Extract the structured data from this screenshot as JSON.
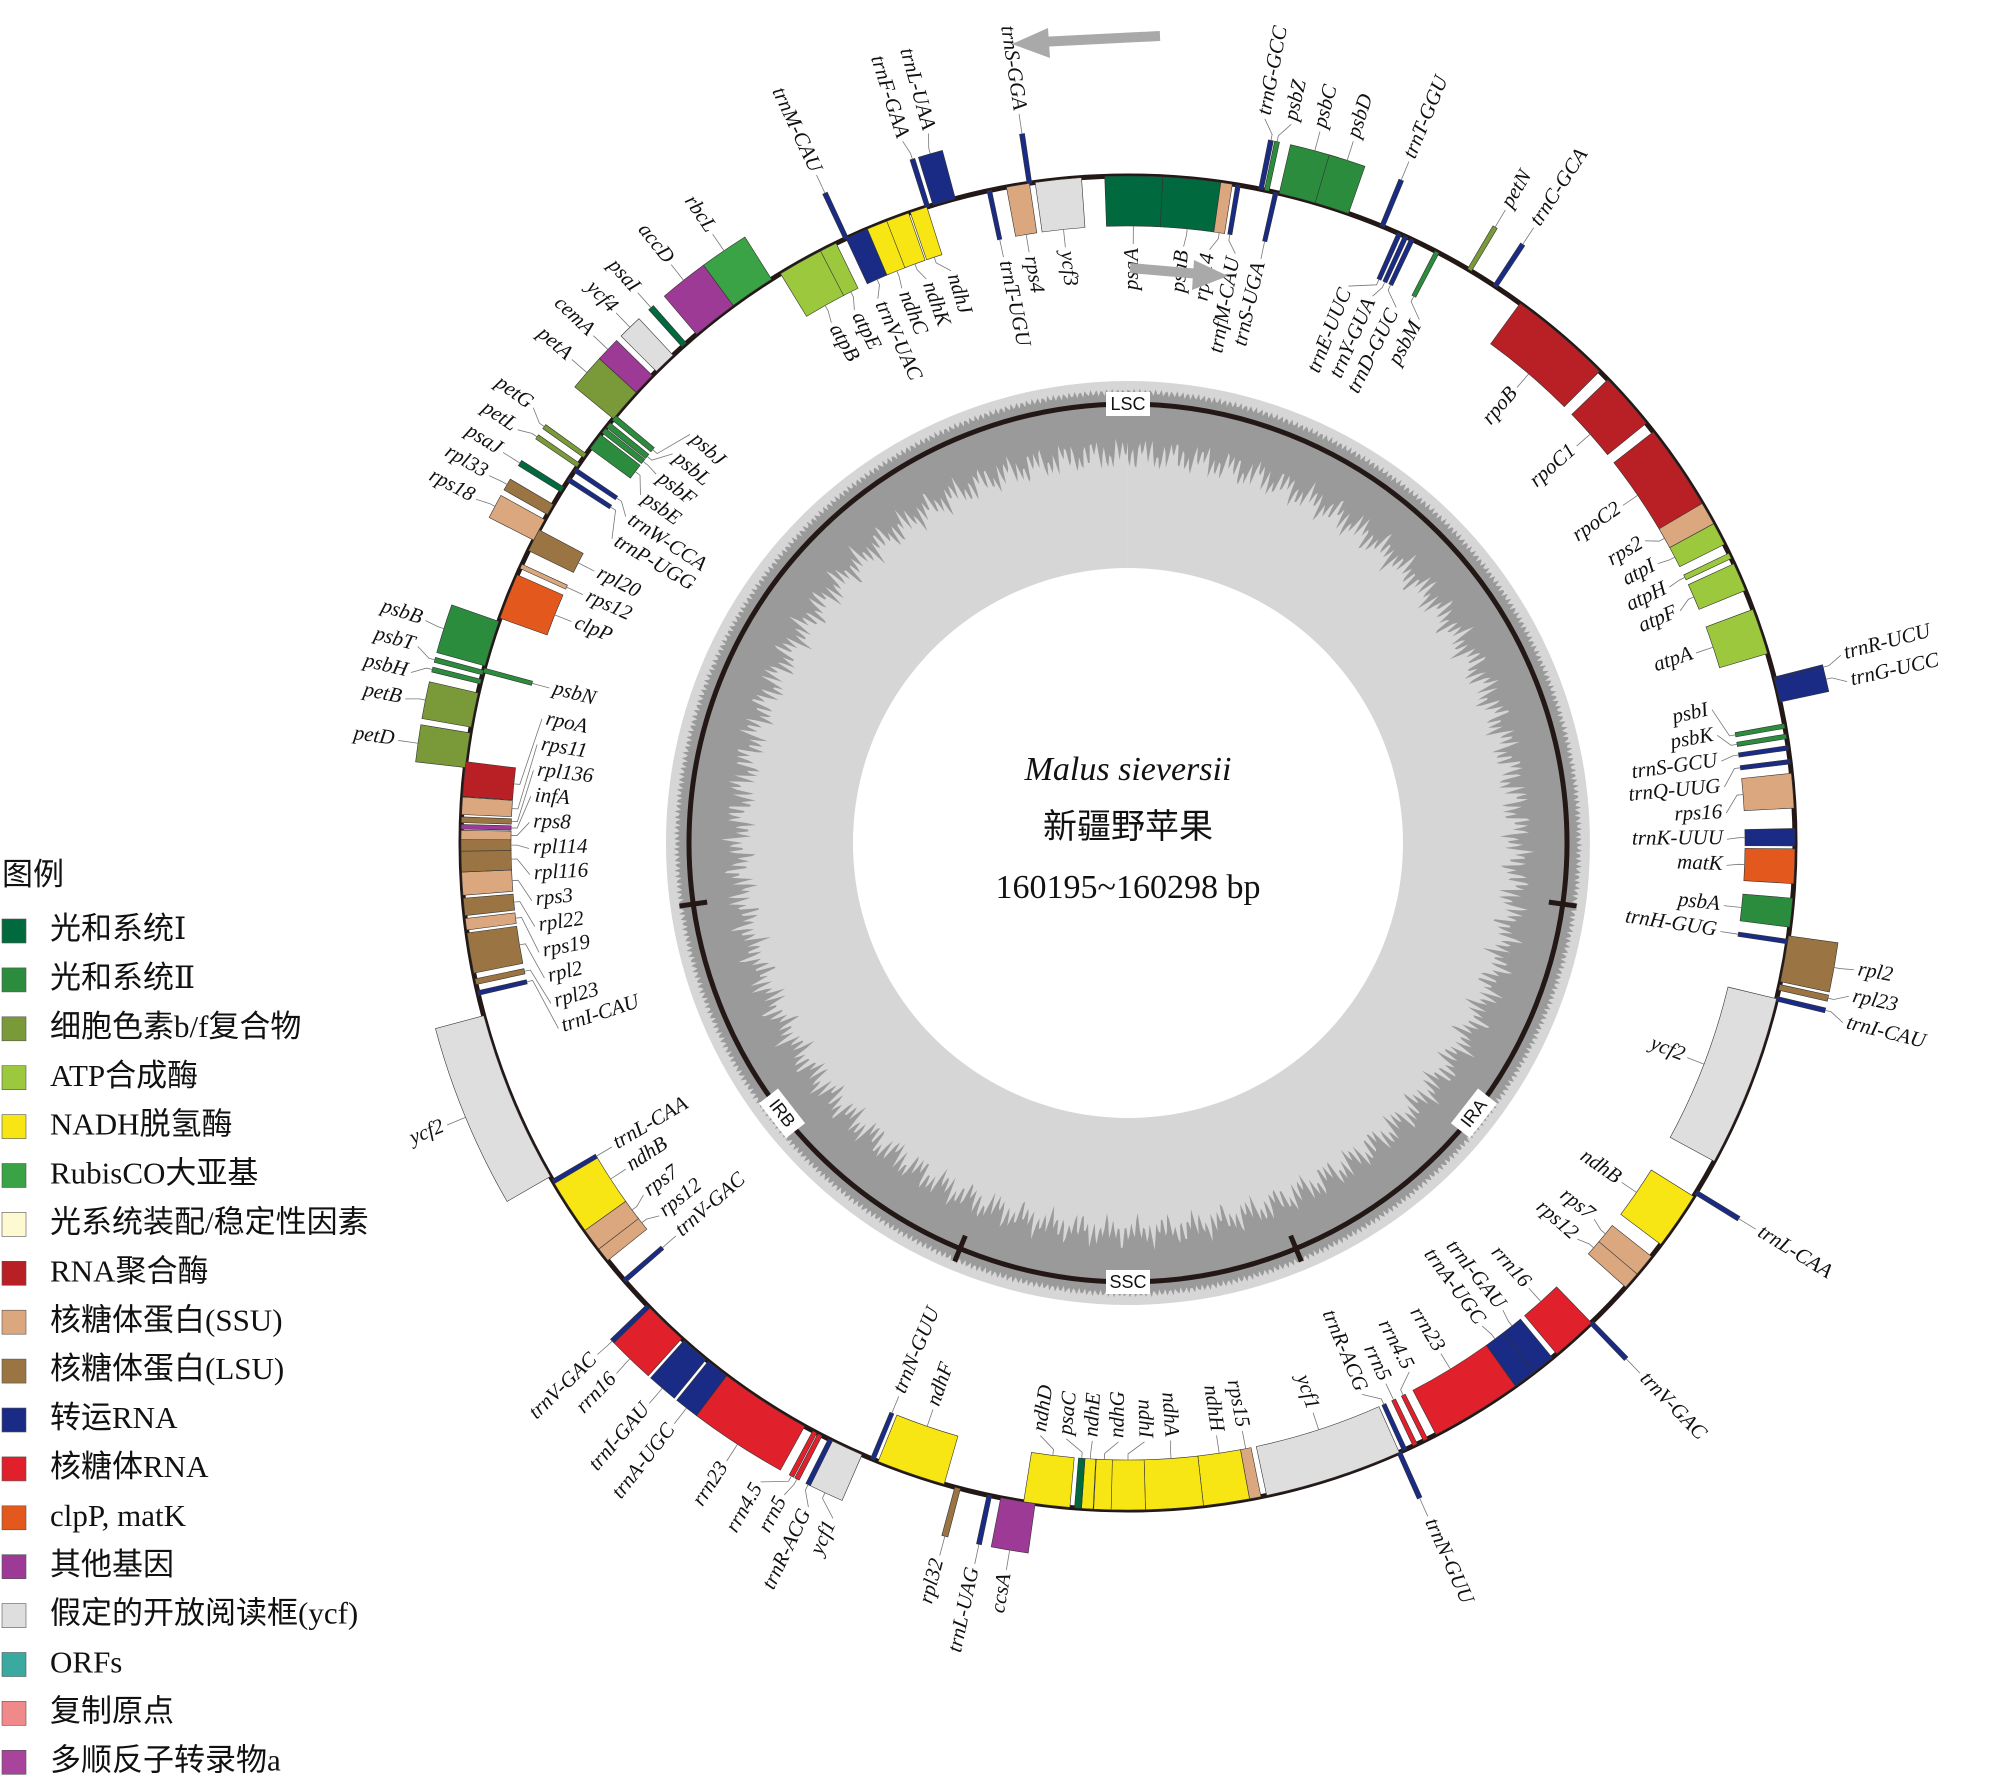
{
  "title": "Malus sieversii",
  "subtitle": "新疆野苹果",
  "genome_size": "160195~160298 bp",
  "regions": [
    "LSC",
    "IRA",
    "SSC",
    "IRB"
  ],
  "legend": {
    "title": "图例",
    "items": [
      {
        "label": "光和系统Ⅰ",
        "color": "#00693e"
      },
      {
        "label": "光和系统Ⅱ",
        "color": "#2a8c3c"
      },
      {
        "label": "细胞色素b/f复合物",
        "color": "#7a9a3a"
      },
      {
        "label": "ATP合成酶",
        "color": "#9bc83c"
      },
      {
        "label": "NADH脱氢酶",
        "color": "#f7e614"
      },
      {
        "label": "RubisCO大亚基",
        "color": "#3aa346"
      },
      {
        "label": "光系统装配/稳定性因素",
        "color": "#fdfad2"
      },
      {
        "label": "RNA聚合酶",
        "color": "#b82025"
      },
      {
        "label": "核糖体蛋白(SSU)",
        "color": "#dba77f"
      },
      {
        "label": "核糖体蛋白(LSU)",
        "color": "#9a7543"
      },
      {
        "label": "转运RNA",
        "color": "#1a2b85"
      },
      {
        "label": "核糖体RNA",
        "color": "#e0202b"
      },
      {
        "label": "clpP, matK",
        "color": "#e3591d"
      },
      {
        "label": "其他基因",
        "color": "#9c3a95"
      },
      {
        "label": "假定的开放阅读框(ycf)",
        "color": "#dedede"
      },
      {
        "label": "ORFs",
        "color": "#3aaaa0"
      },
      {
        "label": "复制原点",
        "color": "#f08a8a"
      },
      {
        "label": "多顺反子转录物a",
        "color": "#a8449c"
      }
    ]
  },
  "outer_genes": [
    {
      "label": "trnL-UAA",
      "color": "#1a2b85"
    },
    {
      "label": "trnF-GAA",
      "color": "#1a2b85"
    },
    {
      "label": "trnM-CAU",
      "color": "#1a2b85"
    },
    {
      "label": "rbcL",
      "color": "#3aa346"
    },
    {
      "label": "accD",
      "color": "#9c3a95"
    },
    {
      "label": "psaI",
      "color": "#00693e"
    },
    {
      "label": "ycf4",
      "color": "#dedede"
    },
    {
      "label": "cemA",
      "color": "#9c3a95"
    },
    {
      "label": "petA",
      "color": "#7a9a3a"
    },
    {
      "label": "petL",
      "color": "#7a9a3a"
    },
    {
      "label": "petG",
      "color": "#7a9a3a"
    },
    {
      "label": "psaJ",
      "color": "#00693e"
    },
    {
      "label": "rpl33",
      "color": "#9a7543"
    },
    {
      "label": "rps18",
      "color": "#dba77f"
    },
    {
      "label": "psbB",
      "color": "#2a8c3c"
    },
    {
      "label": "psbT",
      "color": "#2a8c3c"
    },
    {
      "label": "psbH",
      "color": "#2a8c3c"
    },
    {
      "label": "petB",
      "color": "#7a9a3a"
    },
    {
      "label": "petD",
      "color": "#7a9a3a"
    },
    {
      "label": "ycf2",
      "color": "#dedede"
    },
    {
      "label": "trnV-GAC",
      "color": "#1a2b85"
    },
    {
      "label": "rrn16",
      "color": "#e0202b"
    },
    {
      "label": "trnI-GAU",
      "color": "#1a2b85"
    },
    {
      "label": "trnA-UGC",
      "color": "#1a2b85"
    },
    {
      "label": "rrn23",
      "color": "#e0202b"
    },
    {
      "label": "rrn4.5",
      "color": "#e0202b"
    },
    {
      "label": "rrn5",
      "color": "#e0202b"
    },
    {
      "label": "trnR-ACG",
      "color": "#1a2b85"
    },
    {
      "label": "ycf1",
      "color": "#dedede"
    },
    {
      "label": "rpl32",
      "color": "#9a7543"
    },
    {
      "label": "trnL-UAG",
      "color": "#1a2b85"
    },
    {
      "label": "ccsA",
      "color": "#9c3a95"
    },
    {
      "label": "trnN-GUU",
      "color": "#1a2b85"
    },
    {
      "label": "trnV-GAC",
      "color": "#1a2b85"
    },
    {
      "label": "trnL-CAA",
      "color": "#1a2b85"
    },
    {
      "label": "rpl2",
      "color": "#9a7543"
    },
    {
      "label": "rpl23",
      "color": "#9a7543"
    },
    {
      "label": "trnI-CAU",
      "color": "#1a2b85"
    },
    {
      "label": "trnR-UCU",
      "color": "#1a2b85"
    },
    {
      "label": "trnG-UCC",
      "color": "#1a2b85"
    },
    {
      "label": "trnC-GCA",
      "color": "#1a2b85"
    },
    {
      "label": "petN",
      "color": "#7a9a3a"
    },
    {
      "label": "trnT-GGU",
      "color": "#1a2b85"
    },
    {
      "label": "psbD",
      "color": "#2a8c3c"
    },
    {
      "label": "psbC",
      "color": "#2a8c3c"
    },
    {
      "label": "psbZ",
      "color": "#2a8c3c"
    },
    {
      "label": "trnG-GCC",
      "color": "#1a2b85"
    },
    {
      "label": "trnS-GGA",
      "color": "#1a2b85"
    }
  ],
  "inner_genes": [
    {
      "label": "psaA",
      "color": "#00693e"
    },
    {
      "label": "psaB",
      "color": "#00693e"
    },
    {
      "label": "rps14",
      "color": "#dba77f"
    },
    {
      "label": "trnfM-CAU",
      "color": "#1a2b85"
    },
    {
      "label": "trnS-UGA",
      "color": "#1a2b85"
    },
    {
      "label": "trnE-UUC",
      "color": "#1a2b85"
    },
    {
      "label": "trnY-GUA",
      "color": "#1a2b85"
    },
    {
      "label": "trnD-GUC",
      "color": "#1a2b85"
    },
    {
      "label": "psbM",
      "color": "#2a8c3c"
    },
    {
      "label": "rpoB",
      "color": "#b82025"
    },
    {
      "label": "rpoC1",
      "color": "#b82025"
    },
    {
      "label": "rpoC2",
      "color": "#b82025"
    },
    {
      "label": "rps2",
      "color": "#dba77f"
    },
    {
      "label": "atpI",
      "color": "#9bc83c"
    },
    {
      "label": "atpH",
      "color": "#9bc83c"
    },
    {
      "label": "atpF",
      "color": "#9bc83c"
    },
    {
      "label": "atpA",
      "color": "#9bc83c"
    },
    {
      "label": "psbI",
      "color": "#2a8c3c"
    },
    {
      "label": "psbK",
      "color": "#2a8c3c"
    },
    {
      "label": "trnS-GCU",
      "color": "#1a2b85"
    },
    {
      "label": "trnQ-UUG",
      "color": "#1a2b85"
    },
    {
      "label": "rps16",
      "color": "#dba77f"
    },
    {
      "label": "trnK-UUU",
      "color": "#1a2b85"
    },
    {
      "label": "matK",
      "color": "#e3591d"
    },
    {
      "label": "psbA",
      "color": "#2a8c3c"
    },
    {
      "label": "trnH-GUG",
      "color": "#1a2b85"
    },
    {
      "label": "ycf2",
      "color": "#dedede"
    },
    {
      "label": "ndhB",
      "color": "#f7e614"
    },
    {
      "label": "rps7",
      "color": "#dba77f"
    },
    {
      "label": "rps12",
      "color": "#dba77f"
    },
    {
      "label": "rrn16",
      "color": "#e0202b"
    },
    {
      "label": "trnI-GAU",
      "color": "#1a2b85"
    },
    {
      "label": "trnA-UGC",
      "color": "#1a2b85"
    },
    {
      "label": "rrn23",
      "color": "#e0202b"
    },
    {
      "label": "rrn4.5",
      "color": "#e0202b"
    },
    {
      "label": "rrn5",
      "color": "#e0202b"
    },
    {
      "label": "trnR-ACG",
      "color": "#1a2b85"
    },
    {
      "label": "ycf1",
      "color": "#dedede"
    },
    {
      "label": "rps15",
      "color": "#dba77f"
    },
    {
      "label": "ndhH",
      "color": "#f7e614"
    },
    {
      "label": "ndhA",
      "color": "#f7e614"
    },
    {
      "label": "ndhI",
      "color": "#f7e614"
    },
    {
      "label": "ndhG",
      "color": "#f7e614"
    },
    {
      "label": "ndhE",
      "color": "#f7e614"
    },
    {
      "label": "psaC",
      "color": "#00693e"
    },
    {
      "label": "ndhD",
      "color": "#f7e614"
    },
    {
      "label": "ndhF",
      "color": "#f7e614"
    },
    {
      "label": "trnN-GUU",
      "color": "#1a2b85"
    },
    {
      "label": "trnV-GAC",
      "color": "#1a2b85"
    },
    {
      "label": "rps12",
      "color": "#dba77f"
    },
    {
      "label": "rps7",
      "color": "#dba77f"
    },
    {
      "label": "ndhB",
      "color": "#f7e614"
    },
    {
      "label": "trnL-CAA",
      "color": "#1a2b85"
    },
    {
      "label": "trnI-CAU",
      "color": "#1a2b85"
    },
    {
      "label": "rpl23",
      "color": "#9a7543"
    },
    {
      "label": "rpl2",
      "color": "#9a7543"
    },
    {
      "label": "rps19",
      "color": "#dba77f"
    },
    {
      "label": "rpl22",
      "color": "#9a7543"
    },
    {
      "label": "rps3",
      "color": "#dba77f"
    },
    {
      "label": "rpl116",
      "color": "#9a7543"
    },
    {
      "label": "rpl114",
      "color": "#9a7543"
    },
    {
      "label": "rps8",
      "color": "#dba77f"
    },
    {
      "label": "infA",
      "color": "#9c3a95"
    },
    {
      "label": "rpl136",
      "color": "#9a7543"
    },
    {
      "label": "rps11",
      "color": "#dba77f"
    },
    {
      "label": "rpoA",
      "color": "#b82025"
    },
    {
      "label": "psbN",
      "color": "#2a8c3c"
    },
    {
      "label": "clpP",
      "color": "#e3591d"
    },
    {
      "label": "rps12",
      "color": "#dba77f"
    },
    {
      "label": "rpl20",
      "color": "#9a7543"
    },
    {
      "label": "trnP-UGG",
      "color": "#1a2b85"
    },
    {
      "label": "trnW-CCA",
      "color": "#1a2b85"
    },
    {
      "label": "psbE",
      "color": "#2a8c3c"
    },
    {
      "label": "psbF",
      "color": "#2a8c3c"
    },
    {
      "label": "psbL",
      "color": "#2a8c3c"
    },
    {
      "label": "psbJ",
      "color": "#2a8c3c"
    },
    {
      "label": "atpB",
      "color": "#9bc83c"
    },
    {
      "label": "atpE",
      "color": "#9bc83c"
    },
    {
      "label": "trnV-UAC",
      "color": "#1a2b85"
    },
    {
      "label": "ndhC",
      "color": "#f7e614"
    },
    {
      "label": "ndhK",
      "color": "#f7e614"
    },
    {
      "label": "ndhJ",
      "color": "#f7e614"
    },
    {
      "label": "trnT-UGU",
      "color": "#1a2b85"
    },
    {
      "label": "rps4",
      "color": "#dba77f"
    },
    {
      "label": "ycf3",
      "color": "#dedede"
    }
  ]
}
